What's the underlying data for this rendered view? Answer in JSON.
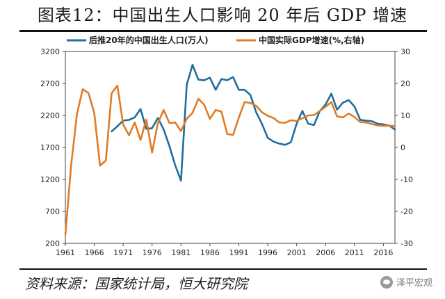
{
  "title": "图表12：中国出生人口影响 20 年后 GDP 增速",
  "source": "资料来源：国家统计局，恒大研究院",
  "watermark": "泽平宏观",
  "chart_data": {
    "type": "line",
    "x_ticks": [
      1961,
      1966,
      1971,
      1976,
      1981,
      1986,
      1991,
      1996,
      2001,
      2006,
      2011,
      2016
    ],
    "y_left_ticks": [
      200,
      700,
      1200,
      1700,
      2200,
      2700,
      3200
    ],
    "y_right_ticks": [
      -30,
      -20,
      -10,
      0,
      10,
      20,
      30
    ],
    "y_left_range": [
      200,
      3200
    ],
    "y_right_range": [
      -30,
      30
    ],
    "x_range": [
      1961,
      2018
    ],
    "legend_position": "top",
    "grid": false,
    "series": [
      {
        "name": "后推20年的中国出生人口(万人)",
        "axis": "left",
        "color": "#1f6e9c",
        "x": [
          1969,
          1970,
          1971,
          1972,
          1973,
          1974,
          1975,
          1976,
          1977,
          1978,
          1979,
          1980,
          1981,
          1982,
          1983,
          1984,
          1985,
          1986,
          1987,
          1988,
          1989,
          1990,
          1991,
          1992,
          1993,
          1994,
          1995,
          1996,
          1997,
          1998,
          1999,
          2000,
          2001,
          2002,
          2003,
          2004,
          2005,
          2006,
          2007,
          2008,
          2009,
          2010,
          2011,
          2012,
          2013,
          2014,
          2015,
          2016,
          2017,
          2018
        ],
        "values": [
          1950,
          2030,
          2120,
          2130,
          2170,
          2300,
          1990,
          2000,
          2160,
          1980,
          1720,
          1420,
          1180,
          2680,
          2990,
          2760,
          2750,
          2790,
          2600,
          2770,
          2750,
          2800,
          2600,
          2600,
          2520,
          2250,
          2070,
          1850,
          1790,
          1760,
          1740,
          1780,
          2070,
          2270,
          2070,
          2050,
          2270,
          2370,
          2540,
          2290,
          2400,
          2440,
          2340,
          2130,
          2120,
          2110,
          2070,
          2060,
          2040,
          1980
        ]
      },
      {
        "name": "中国实际GDP增速(%,右轴)",
        "axis": "right",
        "color": "#e07b26",
        "x": [
          1961,
          1962,
          1963,
          1964,
          1965,
          1966,
          1967,
          1968,
          1969,
          1970,
          1971,
          1972,
          1973,
          1974,
          1975,
          1976,
          1977,
          1978,
          1979,
          1980,
          1981,
          1982,
          1983,
          1984,
          1985,
          1986,
          1987,
          1988,
          1989,
          1990,
          1991,
          1992,
          1993,
          1994,
          1995,
          1996,
          1997,
          1998,
          1999,
          2000,
          2001,
          2002,
          2003,
          2004,
          2005,
          2006,
          2007,
          2008,
          2009,
          2010,
          2011,
          2012,
          2013,
          2014,
          2015,
          2016,
          2017,
          2018
        ],
        "values": [
          -27.3,
          -5.6,
          10.3,
          18.2,
          17.0,
          10.7,
          -5.7,
          -4.1,
          16.9,
          19.3,
          7.1,
          3.8,
          7.8,
          2.3,
          8.7,
          -1.6,
          7.6,
          11.7,
          7.6,
          7.8,
          5.1,
          9.0,
          10.8,
          15.2,
          13.4,
          8.9,
          11.7,
          11.2,
          4.2,
          3.9,
          9.3,
          14.2,
          13.9,
          13.0,
          11.0,
          9.9,
          9.2,
          7.8,
          7.7,
          8.5,
          8.3,
          9.1,
          10.0,
          10.1,
          11.4,
          12.7,
          14.2,
          9.7,
          9.4,
          10.6,
          9.5,
          7.9,
          7.8,
          7.3,
          6.9,
          6.7,
          6.8,
          6.6
        ]
      }
    ]
  }
}
